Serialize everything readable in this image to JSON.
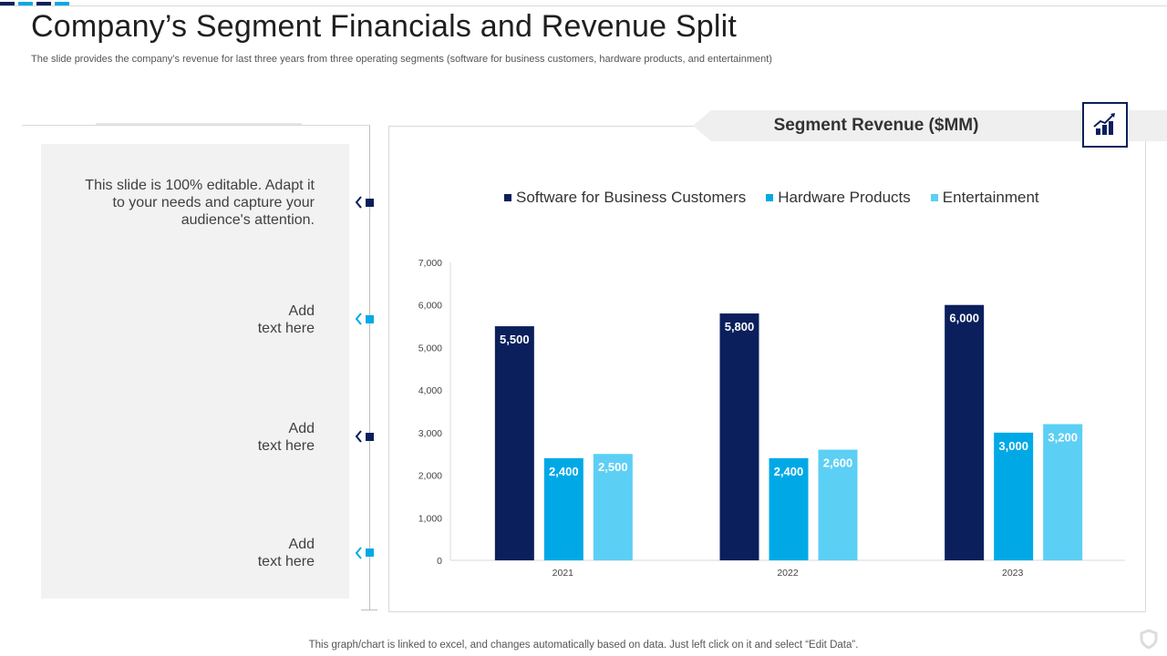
{
  "slide": {
    "title": "Company’s Segment Financials and Revenue Split",
    "subtitle": "The slide provides the company’s revenue for last three years from three operating segments (software for business customers, hardware products, and entertainment)",
    "footer": "This graph/chart is linked to excel,  and changes automatically based on data. Just left click on it and select “Edit Data”."
  },
  "notes": [
    {
      "text": "This slide is 100% editable. Adapt it\nto your needs and capture your\naudience's attention.",
      "marker_color": "#0a1f5c"
    },
    {
      "text": "Add\ntext here",
      "marker_color": "#00a9e6"
    },
    {
      "text": "Add\ntext here",
      "marker_color": "#0a1f5c"
    },
    {
      "text": "Add\ntext here",
      "marker_color": "#00a9e6"
    }
  ],
  "chart_header": {
    "title": "Segment Revenue ($MM)",
    "icon": "bar-chart-growth-icon"
  },
  "colors": {
    "navy": "#0a1f5c",
    "blue": "#00a9e6",
    "light_blue": "#5ccff5",
    "banner_gray": "#efefef"
  },
  "chart_data": {
    "type": "bar",
    "title": "Segment Revenue ($MM)",
    "categories": [
      "2021",
      "2022",
      "2023"
    ],
    "series": [
      {
        "name": "Software for Business Customers",
        "color": "#0a1f5c",
        "values": [
          5500,
          5800,
          6000
        ]
      },
      {
        "name": "Hardware Products",
        "color": "#00a9e6",
        "values": [
          2400,
          2400,
          3000
        ]
      },
      {
        "name": "Entertainment",
        "color": "#5ccff5",
        "values": [
          2500,
          2600,
          3200
        ]
      }
    ],
    "ylim": [
      0,
      7000
    ],
    "yticks": [
      0,
      1000,
      2000,
      3000,
      4000,
      5000,
      6000,
      7000
    ],
    "ytick_labels": [
      "0",
      "1,000",
      "2,000",
      "3,000",
      "4,000",
      "5,000",
      "6,000",
      "7,000"
    ],
    "data_labels": [
      [
        "5,500",
        "5,800",
        "6,000"
      ],
      [
        "2,400",
        "2,400",
        "3,000"
      ],
      [
        "2,500",
        "2,600",
        "3,200"
      ]
    ],
    "legend": "top",
    "grid": false,
    "xlabel": "",
    "ylabel": ""
  }
}
